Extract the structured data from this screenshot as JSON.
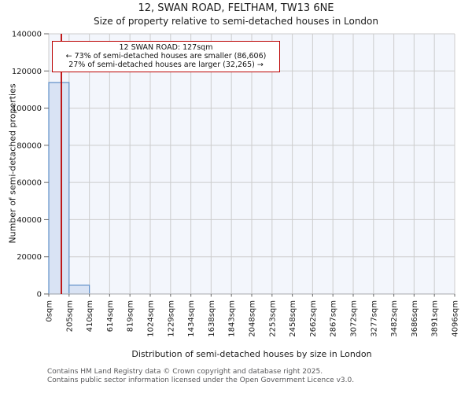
{
  "chart_data": {
    "type": "bar",
    "title": "12, SWAN ROAD, FELTHAM, TW13 6NE",
    "subtitle": "Size of property relative to semi-detached houses in London",
    "xlabel": "Distribution of semi-detached houses by size in London",
    "ylabel": "Number of semi-detached properties",
    "categories": [
      "0sqm",
      "205sqm",
      "410sqm",
      "614sqm",
      "819sqm",
      "1024sqm",
      "1229sqm",
      "1434sqm",
      "1638sqm",
      "1843sqm",
      "2048sqm",
      "2253sqm",
      "2458sqm",
      "2662sqm",
      "2867sqm",
      "3072sqm",
      "3277sqm",
      "3482sqm",
      "3686sqm",
      "3891sqm",
      "4096sqm"
    ],
    "bin_edges_sqm": [
      0,
      205,
      410,
      614,
      819,
      1024,
      1229,
      1434,
      1638,
      1843,
      2048,
      2253,
      2458,
      2662,
      2867,
      3072,
      3277,
      3482,
      3686,
      3891,
      4096
    ],
    "values": [
      113800,
      4700,
      0,
      0,
      0,
      0,
      0,
      0,
      0,
      0,
      0,
      0,
      0,
      0,
      0,
      0,
      0,
      0,
      0,
      0
    ],
    "xlim_sqm": [
      0,
      4096
    ],
    "ylim": [
      0,
      140000
    ],
    "yticks": [
      0,
      20000,
      40000,
      60000,
      80000,
      100000,
      120000,
      140000
    ],
    "ytick_labels": [
      "0",
      "20000",
      "40000",
      "60000",
      "80000",
      "100000",
      "120000",
      "140000"
    ],
    "grid": true,
    "legend": false,
    "marker_line": {
      "value_sqm": 127,
      "color": "#bb0000"
    },
    "colors": {
      "bar_fill": "#d9e3f4",
      "bar_edge": "#5f8fc7",
      "plot_bg": "#f3f6fc",
      "grid": "#cccccc",
      "axis_line": "#b9babe",
      "tick_mark": "#666666",
      "marker": "#bb0000"
    }
  },
  "annotation": {
    "line1": "12 SWAN ROAD: 127sqm",
    "line2": "← 73% of semi-detached houses are smaller (86,606)",
    "line3": "27% of semi-detached houses are larger (32,265) →"
  },
  "footer": {
    "line1": "Contains HM Land Registry data © Crown copyright and database right 2025.",
    "line2": "Contains public sector information licensed under the Open Government Licence v3.0."
  }
}
